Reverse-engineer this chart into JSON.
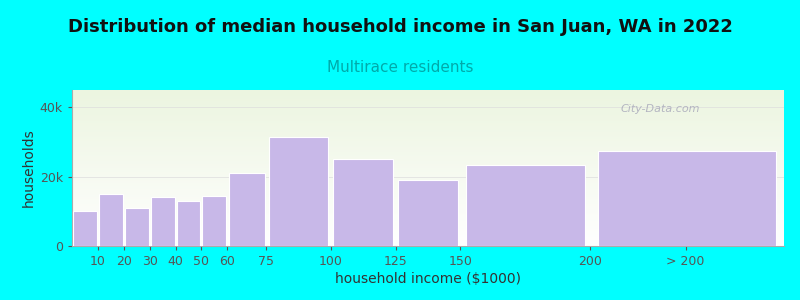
{
  "title": "Distribution of median household income in San Juan, WA in 2022",
  "subtitle": "Multirace residents",
  "xlabel": "household income ($1000)",
  "ylabel": "households",
  "background_color": "#00FFFF",
  "bar_color": "#c8b8e8",
  "bar_edge_color": "#ffffff",
  "bar_lefts": [
    0,
    10,
    20,
    30,
    40,
    50,
    60,
    75,
    100,
    125,
    150,
    200
  ],
  "bar_widths": [
    10,
    10,
    10,
    10,
    10,
    10,
    15,
    25,
    25,
    25,
    50,
    75
  ],
  "values": [
    10000,
    15000,
    11000,
    14000,
    13000,
    14500,
    21000,
    31500,
    25000,
    19000,
    23500,
    27500
  ],
  "ylim": [
    0,
    45000
  ],
  "yticks": [
    0,
    20000,
    40000
  ],
  "ytick_labels": [
    "0",
    "20k",
    "40k"
  ],
  "xtick_positions": [
    10,
    20,
    30,
    40,
    50,
    60,
    75,
    100,
    125,
    150,
    200,
    237
  ],
  "xtick_labels": [
    "10",
    "20",
    "30",
    "40",
    "50",
    "60",
    "75",
    "100",
    "125",
    "150",
    "200",
    "> 200"
  ],
  "xlim_max": 275,
  "title_fontsize": 13,
  "subtitle_fontsize": 11,
  "axis_label_fontsize": 10,
  "tick_fontsize": 9,
  "watermark_text": "City-Data.com",
  "watermark_color": "#aaaabb"
}
